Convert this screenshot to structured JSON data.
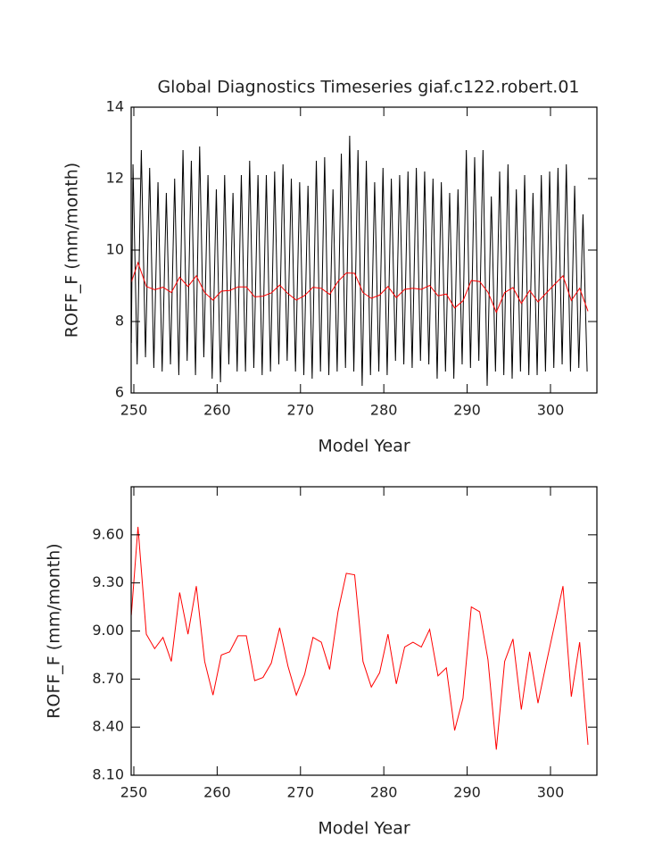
{
  "chart_data": [
    {
      "type": "line",
      "title": "Global Diagnostics Timeseries giaf.c122.robert.01",
      "x_label": "Model Year",
      "y_label": "ROFF_F (mm/month)",
      "xlim": [
        249.68,
        305.57
      ],
      "xticks": [
        250,
        260,
        270,
        280,
        290,
        300
      ],
      "ylim": [
        6,
        14
      ],
      "yticks": [
        6,
        8,
        10,
        12,
        14
      ],
      "series": [
        {
          "color": "#000000",
          "x": [
            249.7,
            249.9,
            250.4,
            250.9,
            251.4,
            251.9,
            252.4,
            252.9,
            253.4,
            253.9,
            254.4,
            254.9,
            255.4,
            255.9,
            256.4,
            256.9,
            257.4,
            257.9,
            258.4,
            258.9,
            259.4,
            259.9,
            260.4,
            260.9,
            261.4,
            261.9,
            262.4,
            262.9,
            263.4,
            263.9,
            264.4,
            264.9,
            265.4,
            265.9,
            266.4,
            266.9,
            267.4,
            267.9,
            268.4,
            268.9,
            269.4,
            269.9,
            270.4,
            270.9,
            271.4,
            271.9,
            272.4,
            272.9,
            273.4,
            273.9,
            274.4,
            274.9,
            275.4,
            275.9,
            276.4,
            276.9,
            277.4,
            277.9,
            278.4,
            278.9,
            279.4,
            279.9,
            280.4,
            280.9,
            281.4,
            281.9,
            282.4,
            282.9,
            283.4,
            283.9,
            284.4,
            284.9,
            285.4,
            285.9,
            286.4,
            286.9,
            287.4,
            287.9,
            288.4,
            288.9,
            289.4,
            289.9,
            290.4,
            290.9,
            291.4,
            291.9,
            292.4,
            292.9,
            293.4,
            293.9,
            294.4,
            294.9,
            295.4,
            295.9,
            296.4,
            296.9,
            297.4,
            297.9,
            298.4,
            298.9,
            299.4,
            299.9,
            300.4,
            300.9,
            301.4,
            301.9,
            302.4,
            302.9,
            303.4,
            303.9,
            304.4
          ],
          "values": [
            7.4,
            12.4,
            6.8,
            12.8,
            7.0,
            12.3,
            6.7,
            11.9,
            6.6,
            11.6,
            6.8,
            12.0,
            6.5,
            12.8,
            6.9,
            12.5,
            6.5,
            12.9,
            7.0,
            12.1,
            6.4,
            11.7,
            6.3,
            12.1,
            6.8,
            11.6,
            6.6,
            12.1,
            6.6,
            12.5,
            6.7,
            12.1,
            6.5,
            12.1,
            6.6,
            12.2,
            6.8,
            12.4,
            6.9,
            12.0,
            6.6,
            11.9,
            6.5,
            11.8,
            6.4,
            12.5,
            6.6,
            12.6,
            6.5,
            11.7,
            6.6,
            12.7,
            6.7,
            13.2,
            6.6,
            12.8,
            6.2,
            12.5,
            6.5,
            11.9,
            6.6,
            12.3,
            6.5,
            12.0,
            6.9,
            12.1,
            6.8,
            12.2,
            6.7,
            12.3,
            6.9,
            12.2,
            6.8,
            12.0,
            6.4,
            11.9,
            6.6,
            11.6,
            6.4,
            11.7,
            6.8,
            12.8,
            6.7,
            12.6,
            6.9,
            12.8,
            6.2,
            11.5,
            6.6,
            12.2,
            6.5,
            12.4,
            6.4,
            11.7,
            6.6,
            12.1,
            6.5,
            11.6,
            6.5,
            12.1,
            6.6,
            12.2,
            6.7,
            12.3,
            6.8,
            12.4,
            6.6,
            11.8,
            6.7,
            11.0,
            6.6
          ]
        },
        {
          "color": "#ff0000",
          "x": [
            249.7,
            250.5,
            251.5,
            252.5,
            253.5,
            254.5,
            255.5,
            256.5,
            257.5,
            258.5,
            259.5,
            260.5,
            261.5,
            262.5,
            263.5,
            264.5,
            265.5,
            266.5,
            267.5,
            268.5,
            269.5,
            270.5,
            271.5,
            272.5,
            273.5,
            274.5,
            275.5,
            276.5,
            277.5,
            278.5,
            279.5,
            280.5,
            281.5,
            282.5,
            283.5,
            284.5,
            285.5,
            286.5,
            287.5,
            288.5,
            289.5,
            290.5,
            291.5,
            292.5,
            293.5,
            294.5,
            295.5,
            296.5,
            297.5,
            298.5,
            299.5,
            300.5,
            301.5,
            302.5,
            303.5,
            304.5
          ],
          "values": [
            9.1,
            9.65,
            8.98,
            8.89,
            8.96,
            8.81,
            9.24,
            8.98,
            9.28,
            8.81,
            8.6,
            8.85,
            8.87,
            8.97,
            8.97,
            8.69,
            8.71,
            8.8,
            9.02,
            8.78,
            8.6,
            8.73,
            8.96,
            8.93,
            8.76,
            9.12,
            9.36,
            9.35,
            8.81,
            8.65,
            8.74,
            8.98,
            8.67,
            8.9,
            8.93,
            8.9,
            9.01,
            8.72,
            8.77,
            8.38,
            8.58,
            9.15,
            9.12,
            8.82,
            8.26,
            8.81,
            8.95,
            8.51,
            8.87,
            8.55,
            8.8,
            9.04,
            9.28,
            8.59,
            8.93,
            8.29
          ]
        }
      ]
    },
    {
      "type": "line",
      "x_label": "Model Year",
      "y_label": "ROFF_F (mm/month)",
      "xlim": [
        249.68,
        305.57
      ],
      "xticks": [
        250,
        260,
        270,
        280,
        290,
        300
      ],
      "ylim": [
        8.1,
        9.9
      ],
      "yticks": [
        {
          "value": 8.1,
          "label": "8.10"
        },
        {
          "value": 8.4,
          "label": "8.40"
        },
        {
          "value": 8.7,
          "label": "8.70"
        },
        {
          "value": 9.0,
          "label": "9.00"
        },
        {
          "value": 9.3,
          "label": "9.30"
        },
        {
          "value": 9.6,
          "label": "9.60"
        }
      ],
      "series": [
        {
          "color": "#ff0000",
          "x": [
            249.7,
            250.5,
            251.5,
            252.5,
            253.5,
            254.5,
            255.5,
            256.5,
            257.5,
            258.5,
            259.5,
            260.5,
            261.5,
            262.5,
            263.5,
            264.5,
            265.5,
            266.5,
            267.5,
            268.5,
            269.5,
            270.5,
            271.5,
            272.5,
            273.5,
            274.5,
            275.5,
            276.5,
            277.5,
            278.5,
            279.5,
            280.5,
            281.5,
            282.5,
            283.5,
            284.5,
            285.5,
            286.5,
            287.5,
            288.5,
            289.5,
            290.5,
            291.5,
            292.5,
            293.5,
            294.5,
            295.5,
            296.5,
            297.5,
            298.5,
            299.5,
            300.5,
            301.5,
            302.5,
            303.5,
            304.5
          ],
          "values": [
            9.1,
            9.65,
            8.98,
            8.89,
            8.96,
            8.81,
            9.24,
            8.98,
            9.28,
            8.81,
            8.6,
            8.85,
            8.87,
            8.97,
            8.97,
            8.69,
            8.71,
            8.8,
            9.02,
            8.78,
            8.6,
            8.73,
            8.96,
            8.93,
            8.76,
            9.12,
            9.36,
            9.35,
            8.81,
            8.65,
            8.74,
            8.98,
            8.67,
            8.9,
            8.93,
            8.9,
            9.01,
            8.72,
            8.77,
            8.38,
            8.58,
            9.15,
            9.12,
            8.82,
            8.26,
            8.81,
            8.95,
            8.51,
            8.87,
            8.55,
            8.8,
            9.04,
            9.28,
            8.59,
            8.93,
            8.29
          ]
        }
      ]
    }
  ]
}
